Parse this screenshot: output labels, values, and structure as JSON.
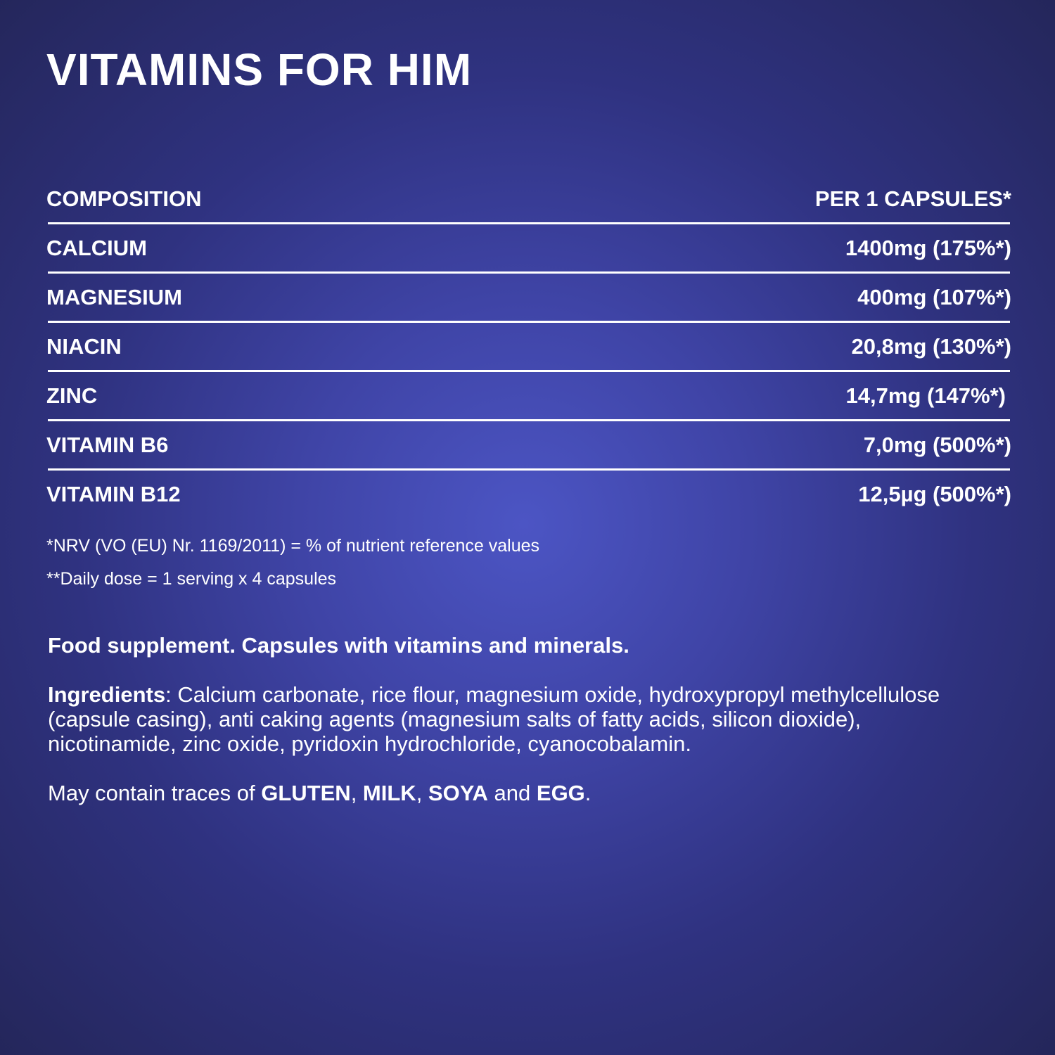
{
  "title": "VITAMINS FOR HIM",
  "table": {
    "header": {
      "name": "COMPOSITION",
      "amount": "PER 1 CAPSULES*"
    },
    "rows": [
      {
        "name": "CALCIUM",
        "amount": "1400mg (175%*)"
      },
      {
        "name": "MAGNESIUM",
        "amount": "400mg (107%*)"
      },
      {
        "name": "NIACIN",
        "amount": "20,8mg (130%*)"
      },
      {
        "name": "ZINC",
        "amount": "14,7mg (147%*)"
      },
      {
        "name": "VITAMIN B6",
        "amount": "7,0mg (500%*)"
      },
      {
        "name": "VITAMIN B12",
        "amount": "12,5µg (500%*)"
      }
    ]
  },
  "notes": [
    "*NRV (VO (EU) Nr. 1169/2011) = % of nutrient reference values",
    "**Daily dose = 1 serving x 4 capsules"
  ],
  "description": "Food supplement. Capsules with vitamins and minerals.",
  "ingredients": {
    "label": "Ingredients",
    "colon": ":",
    "text": " Calcium carbonate, rice flour, magnesium oxide, hydroxypropyl methylcellulose (capsule casing), anti caking agents (magnesium salts of fatty acids, silicon dioxide), nicotinamide, zinc oxide, pyridoxin hydrochloride, cyanocobalamin."
  },
  "allergens": {
    "prefix": "May contain traces of ",
    "a1": "GLUTEN",
    "s1": ", ",
    "a2": "MILK",
    "s2": ", ",
    "a3": "SOYA",
    "s3": " and ",
    "a4": "EGG",
    "end": "."
  }
}
